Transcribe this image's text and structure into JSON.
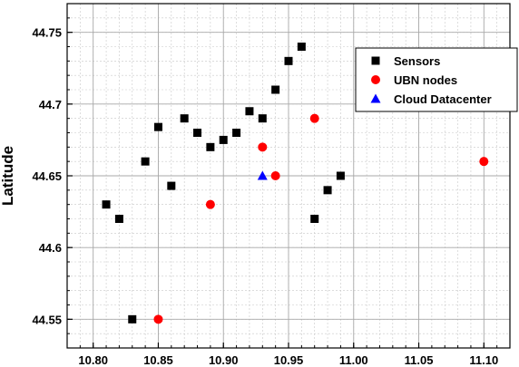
{
  "chart_data": {
    "type": "scatter",
    "title": "",
    "xlabel": "",
    "ylabel": "Latitude",
    "xlim": [
      10.78,
      11.12
    ],
    "ylim": [
      44.53,
      44.77
    ],
    "x_ticks": [
      10.8,
      10.85,
      10.9,
      10.95,
      11.0,
      11.05,
      11.1
    ],
    "x_tick_labels": [
      "10.80",
      "10.85",
      "10.90",
      "10.95",
      "11.00",
      "11.05",
      "11.10"
    ],
    "y_ticks": [
      44.55,
      44.6,
      44.65,
      44.7,
      44.75
    ],
    "y_tick_labels": [
      "44.55",
      "44.6",
      "44.65",
      "44.7",
      "44.75"
    ],
    "grid": true,
    "legend_position": "top-right",
    "series": [
      {
        "name": "Sensors",
        "marker": "square",
        "color": "#000000",
        "points": [
          [
            10.81,
            44.63
          ],
          [
            10.82,
            44.62
          ],
          [
            10.83,
            44.55
          ],
          [
            10.84,
            44.66
          ],
          [
            10.85,
            44.684
          ],
          [
            10.86,
            44.643
          ],
          [
            10.87,
            44.69
          ],
          [
            10.88,
            44.68
          ],
          [
            10.89,
            44.67
          ],
          [
            10.9,
            44.675
          ],
          [
            10.91,
            44.68
          ],
          [
            10.92,
            44.695
          ],
          [
            10.93,
            44.69
          ],
          [
            10.94,
            44.71
          ],
          [
            10.95,
            44.73
          ],
          [
            10.96,
            44.74
          ],
          [
            10.97,
            44.62
          ],
          [
            10.98,
            44.64
          ],
          [
            10.99,
            44.65
          ]
        ]
      },
      {
        "name": "UBN nodes",
        "marker": "circle",
        "color": "#ff0000",
        "points": [
          [
            10.85,
            44.55
          ],
          [
            10.89,
            44.63
          ],
          [
            10.93,
            44.67
          ],
          [
            10.94,
            44.65
          ],
          [
            10.97,
            44.69
          ],
          [
            11.1,
            44.66
          ]
        ]
      },
      {
        "name": "Cloud Datacenter",
        "marker": "triangle",
        "color": "#0000ff",
        "points": [
          [
            10.93,
            44.65
          ]
        ]
      }
    ]
  }
}
